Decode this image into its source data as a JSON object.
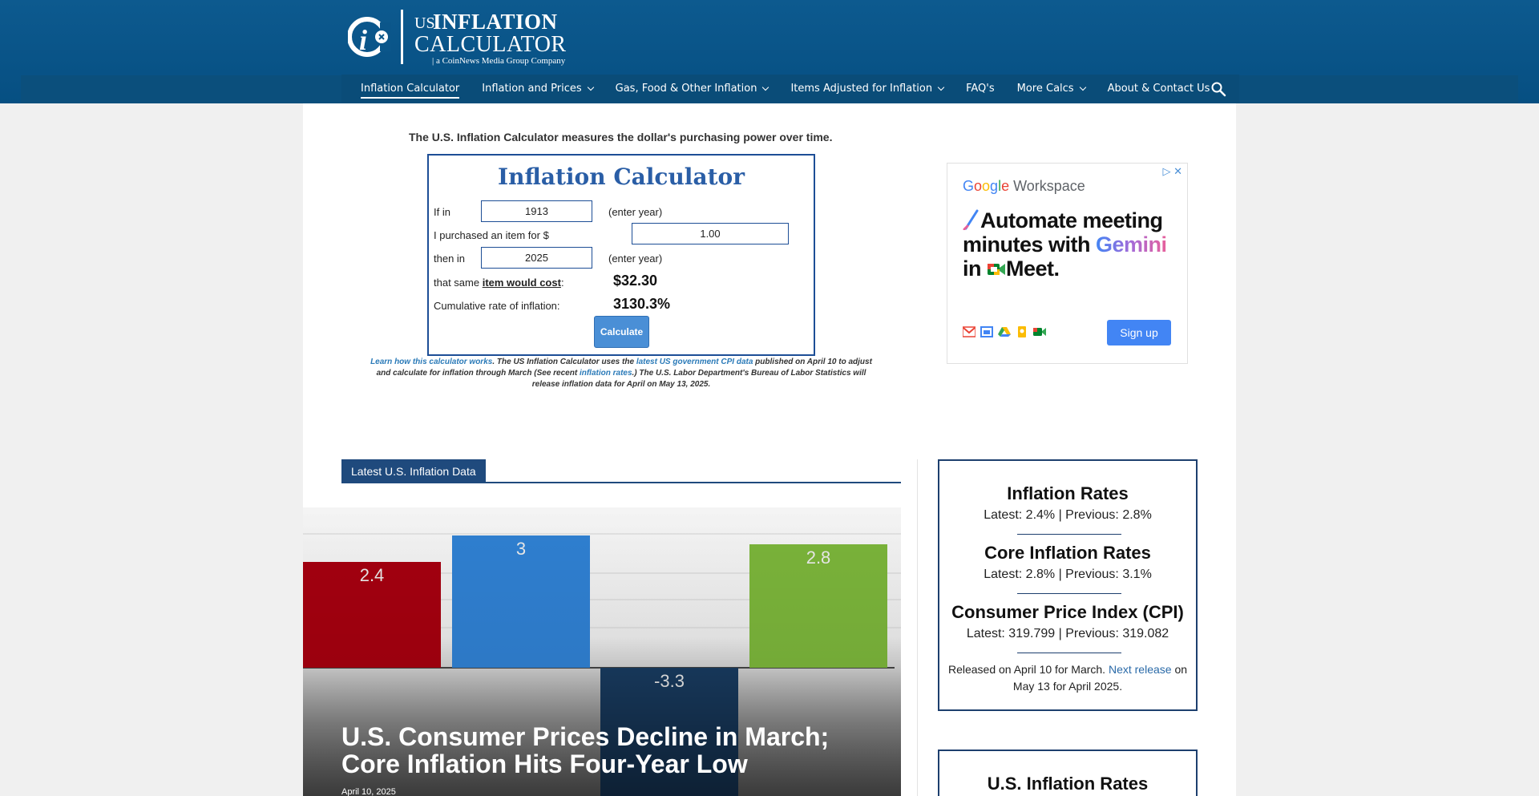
{
  "logo": {
    "us": "US",
    "inflation": "INFLATION",
    "calculator": "CALCULATOR",
    "tagline": "| a CoinNews Media Group Company"
  },
  "nav": {
    "items": [
      {
        "label": "Inflation Calculator",
        "dropdown": false
      },
      {
        "label": "Inflation and Prices",
        "dropdown": true
      },
      {
        "label": "Gas, Food & Other Inflation",
        "dropdown": true
      },
      {
        "label": "Items Adjusted for Inflation",
        "dropdown": true
      },
      {
        "label": "FAQ's",
        "dropdown": false
      },
      {
        "label": "More Calcs",
        "dropdown": true
      },
      {
        "label": "About & Contact Us",
        "dropdown": false
      }
    ],
    "search_icon": "search-icon"
  },
  "intro": "The U.S. Inflation Calculator measures the dollar's purchasing power over time.",
  "calculator": {
    "title": "Inflation Calculator",
    "if_in_label": "If in",
    "start_year": "1913",
    "enter_year_1": "(enter year)",
    "purchased_label": "I purchased an item for $",
    "amount": "1.00",
    "then_in_label": "then in",
    "end_year": "2025",
    "enter_year_2": "(enter year)",
    "same_prefix": "that same ",
    "same_bold": "item would cost",
    "same_suffix": ":",
    "cost_result": "$32.30",
    "cumulative_label": "Cumulative rate of inflation:",
    "cumulative_result": "3130.3%",
    "button": "Calculate"
  },
  "note": {
    "link1": "Learn how this calculator works",
    "text1": ". The US Inflation Calculator uses the ",
    "link2": "latest US government CPI data",
    "text2": " published on April 10 to adjust and calculate for inflation through March (See recent ",
    "link3": "inflation rates",
    "text3": ".) The U.S. Labor Department's Bureau of Labor Statistics will release inflation data for April on May 13, 2025."
  },
  "ad": {
    "brand_google": [
      "G",
      "o",
      "o",
      "g",
      "l",
      "e"
    ],
    "brand_workspace": "Workspace",
    "headline_1": "Automate meeting minutes with ",
    "headline_gemini": "Gemini",
    "headline_2": " in ",
    "headline_meet": "Meet.",
    "button": "Sign up",
    "corner": "▷ ✕"
  },
  "latest": {
    "section_title": "Latest U.S. Inflation Data",
    "headline": "U.S. Consumer Prices Decline in March; Core Inflation Hits Four-Year Low",
    "date": "April 10, 2025",
    "chart_values": [
      {
        "label": "2.4",
        "value": 2.4,
        "color": "#a3000f"
      },
      {
        "label": "3",
        "value": 3,
        "color": "#2f7fd0"
      },
      {
        "label": "-3.3",
        "value": -3.3,
        "color": "#183a5e"
      },
      {
        "label": "2.8",
        "value": 2.8,
        "color": "#7ab33a"
      }
    ]
  },
  "rates": {
    "inflation_title": "Inflation Rates",
    "inflation_value": "Latest: 2.4% | Previous: 2.8%",
    "core_title": "Core Inflation Rates",
    "core_value": "Latest: 2.8% | Previous: 3.1%",
    "cpi_title": "Consumer Price Index (CPI)",
    "cpi_value": "Latest: 319.799 | Previous: 319.082",
    "release_prefix": "Released on April 10 for March. ",
    "release_link": "Next release",
    "release_suffix": " on May 13 for April 2025.",
    "second_box_title": "U.S. Inflation Rates"
  }
}
